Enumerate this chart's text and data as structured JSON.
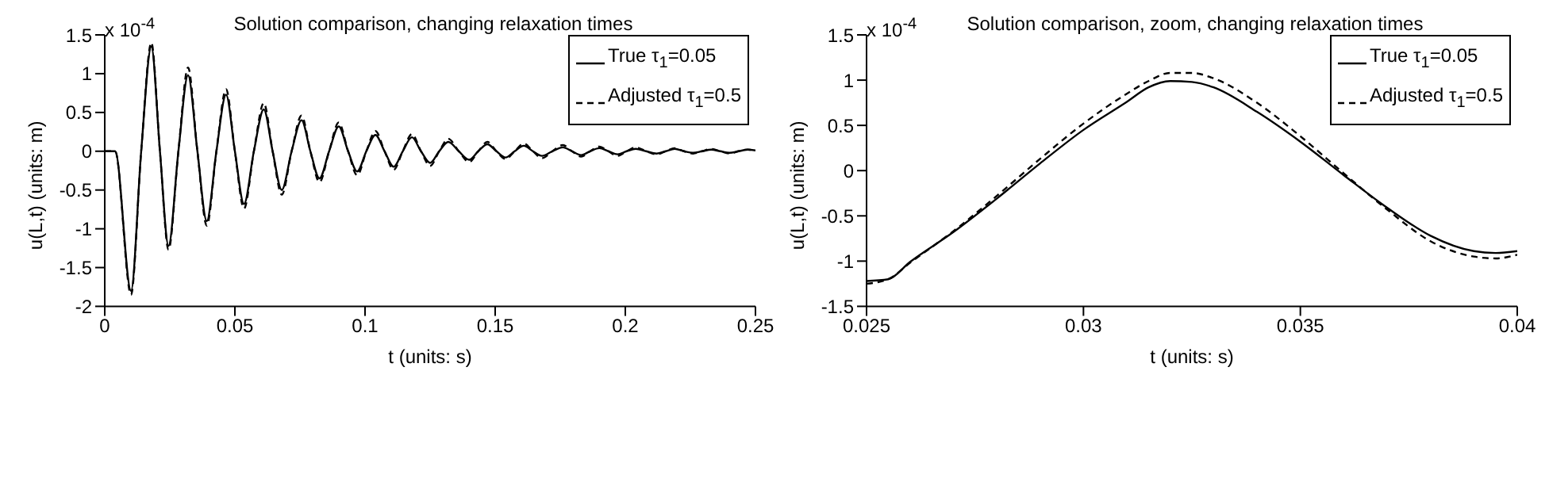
{
  "chart_data": [
    {
      "type": "line",
      "title": "Solution comparison, changing relaxation times",
      "xlabel": "t (units: s)",
      "ylabel": "u(L,t) (units: m)",
      "annotations": [
        "x 10$^{-4}$"
      ],
      "x": [
        0,
        0.004,
        0.0101,
        0.014,
        0.0179,
        0.0212,
        0.0245,
        0.0283,
        0.032,
        0.0356,
        0.0392,
        0.0429,
        0.0466,
        0.05,
        0.0535,
        0.0573,
        0.0611,
        0.0645,
        0.068,
        0.0718,
        0.0756,
        0.079,
        0.0825,
        0.0862,
        0.0899,
        0.0935,
        0.097,
        0.1005,
        0.104,
        0.1075,
        0.111,
        0.1145,
        0.118,
        0.1215,
        0.125,
        0.1285,
        0.132,
        0.136,
        0.14,
        0.1435,
        0.147,
        0.1505,
        0.154,
        0.1575,
        0.161,
        0.1645,
        0.168,
        0.172,
        0.176,
        0.1795,
        0.183,
        0.1865,
        0.19,
        0.1935,
        0.197,
        0.2005,
        0.204,
        0.208,
        0.212,
        0.2155,
        0.219,
        0.2225,
        0.226,
        0.2295,
        0.233,
        0.2365,
        0.24,
        0.2435,
        0.247,
        0.25
      ],
      "series": [
        {
          "name": "True τ$_{1}$=0.05",
          "color": "#000000",
          "line_style": "solid",
          "values": [
            0,
            0,
            -1.8,
            0,
            1.35,
            0,
            -1.22,
            0,
            0.98,
            0,
            -0.9,
            0,
            0.73,
            0,
            -0.68,
            0,
            0.54,
            0,
            -0.5,
            0,
            0.4,
            0,
            -0.35,
            0,
            0.32,
            0,
            -0.26,
            0,
            0.21,
            0,
            -0.2,
            0,
            0.18,
            0,
            -0.15,
            0,
            0.12,
            0,
            -0.11,
            0,
            0.09,
            0,
            -0.08,
            0,
            0.07,
            0,
            -0.06,
            0,
            0.05,
            0,
            -0.05,
            0,
            0.04,
            0,
            -0.04,
            0,
            0.03,
            0,
            -0.03,
            0,
            0.03,
            0,
            -0.02,
            0,
            0.02,
            0,
            -0.02,
            0,
            0.02,
            0.01
          ]
        },
        {
          "name": "Adjusted τ$_{1}$=0.5",
          "color": "#000000",
          "line_style": "dashed",
          "values": [
            0,
            0,
            -1.85,
            0,
            1.4,
            0,
            -1.27,
            0,
            1.08,
            0,
            -0.96,
            0,
            0.8,
            0,
            -0.74,
            0,
            0.62,
            0,
            -0.56,
            0,
            0.46,
            0,
            -0.4,
            0,
            0.37,
            0,
            -0.31,
            0,
            0.26,
            0,
            -0.24,
            0,
            0.22,
            0,
            -0.19,
            0,
            0.16,
            0,
            -0.14,
            0,
            0.12,
            0,
            -0.1,
            0,
            0.1,
            0,
            -0.09,
            0,
            0.08,
            0,
            -0.07,
            0,
            0.06,
            0,
            -0.06,
            0,
            0.05,
            0,
            -0.04,
            0,
            0.04,
            0,
            -0.03,
            0,
            0.03,
            0,
            -0.03,
            0,
            0.02,
            0.01
          ]
        }
      ],
      "xlim": [
        0,
        0.25
      ],
      "xticks": [
        0,
        0.05,
        0.1,
        0.15,
        0.2,
        0.25
      ],
      "ylim": [
        -2,
        1.5
      ],
      "yticks": [
        -2,
        -1.5,
        -1,
        -0.5,
        0,
        0.5,
        1,
        1.5
      ],
      "grid": false,
      "legend": "top right"
    },
    {
      "type": "line",
      "title": "Solution comparison, zoom, changing relaxation times",
      "xlabel": "t (units: s)",
      "ylabel": "u(L,t) (units: m)",
      "annotations": [
        "x 10$^{-4}$"
      ],
      "x": [
        0.025,
        0.0255,
        0.026,
        0.027,
        0.028,
        0.029,
        0.03,
        0.031,
        0.0315,
        0.032,
        0.0325,
        0.033,
        0.034,
        0.035,
        0.036,
        0.037,
        0.038,
        0.039,
        0.0395,
        0.04
      ],
      "series": [
        {
          "name": "True τ$_{1}$=0.05",
          "color": "#000000",
          "line_style": "solid",
          "values": [
            -1.22,
            -1.2,
            -1.01,
            -0.68,
            -0.31,
            0.08,
            0.45,
            0.76,
            0.92,
            0.99,
            0.98,
            0.92,
            0.65,
            0.32,
            -0.05,
            -0.41,
            -0.72,
            -0.89,
            -0.91,
            -0.89
          ]
        },
        {
          "name": "Adjusted τ$_{1}$=0.5",
          "color": "#000000",
          "line_style": "dashed",
          "values": [
            -1.25,
            -1.2,
            -1.02,
            -0.67,
            -0.28,
            0.13,
            0.52,
            0.85,
            0.99,
            1.08,
            1.08,
            1.02,
            0.75,
            0.38,
            -0.03,
            -0.43,
            -0.78,
            -0.95,
            -0.97,
            -0.93
          ]
        }
      ],
      "xlim": [
        0.025,
        0.04
      ],
      "xticks": [
        0.025,
        0.03,
        0.035,
        0.04
      ],
      "ylim": [
        -1.5,
        1.5
      ],
      "yticks": [
        -1.5,
        -1,
        -0.5,
        0,
        0.5,
        1,
        1.5
      ],
      "grid": false,
      "legend": "top right"
    }
  ]
}
